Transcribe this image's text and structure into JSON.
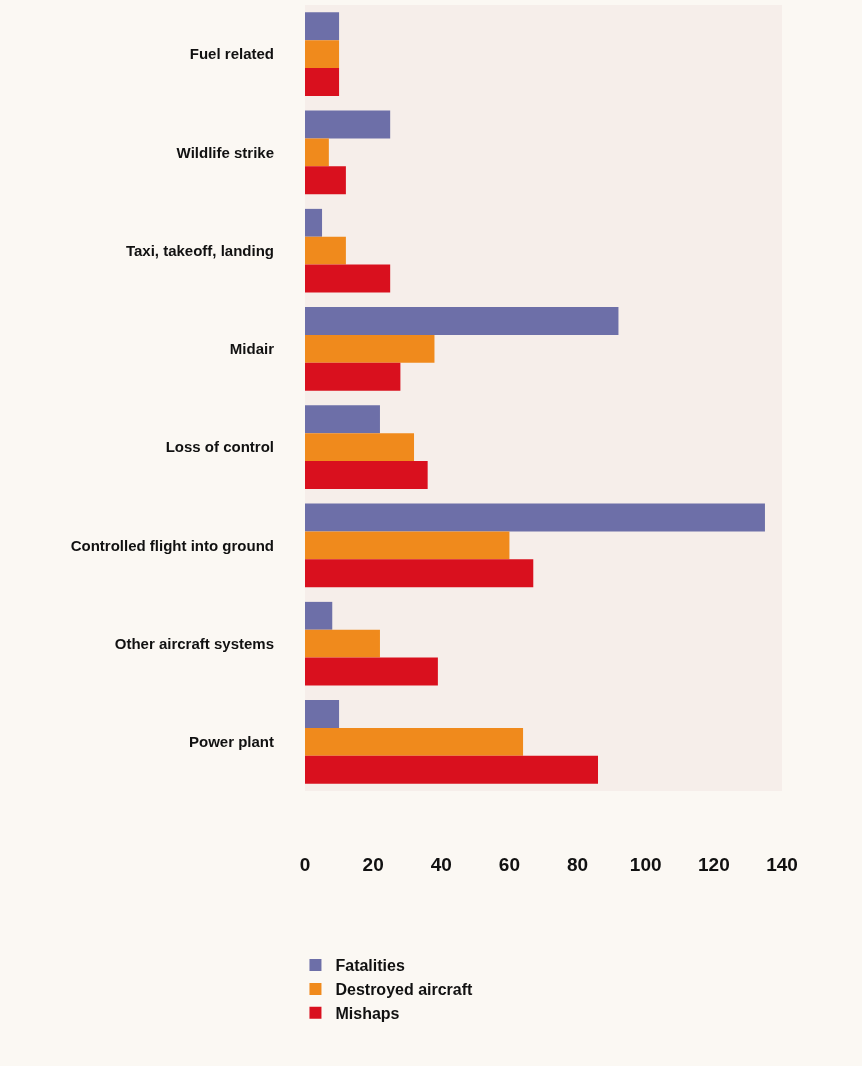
{
  "chart_data": {
    "type": "bar",
    "orientation": "horizontal",
    "categories": [
      "Fuel related",
      "Wildlife strike",
      "Taxi, takeoff, landing",
      "Midair",
      "Loss of control",
      "Controlled flight into ground",
      "Other aircraft systems",
      "Power plant"
    ],
    "series": [
      {
        "name": "Fatalities",
        "color": "#6d6fa8",
        "values": [
          10,
          25,
          5,
          92,
          22,
          135,
          8,
          10
        ]
      },
      {
        "name": "Destroyed aircraft",
        "color": "#f08a1c",
        "values": [
          10,
          7,
          12,
          38,
          32,
          60,
          22,
          64
        ]
      },
      {
        "name": "Mishaps",
        "color": "#d9101e",
        "values": [
          10,
          12,
          25,
          28,
          36,
          67,
          39,
          86
        ]
      }
    ],
    "xlim": [
      0,
      140
    ],
    "xticks": [
      0,
      20,
      40,
      60,
      80,
      100,
      120,
      140
    ],
    "grid": false,
    "legend": "bottom left"
  }
}
